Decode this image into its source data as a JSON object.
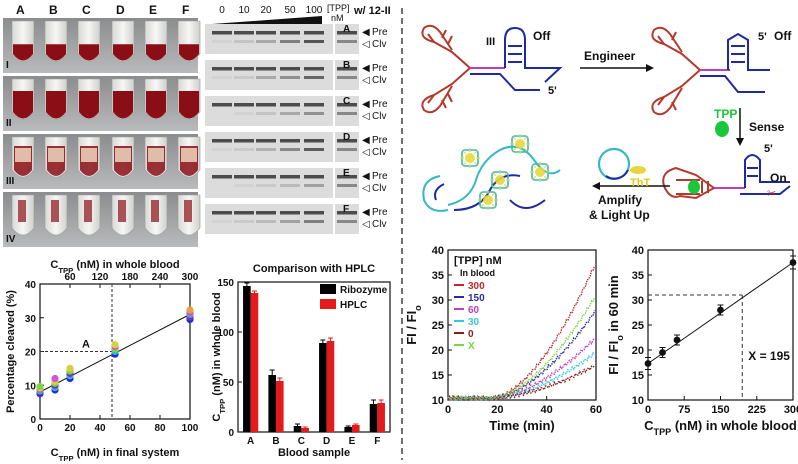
{
  "tube_panel": {
    "columns": [
      "A",
      "B",
      "C",
      "D",
      "E",
      "F"
    ],
    "rows": [
      "I",
      "II",
      "III",
      "IV"
    ]
  },
  "gel_panel": {
    "concentrations": [
      "0",
      "10",
      "20",
      "50",
      "100"
    ],
    "conc_label": "[TPP]",
    "conc_unit": "nM",
    "extra_header": "w/ 12-II",
    "lanes": [
      "A",
      "B",
      "C",
      "D",
      "E",
      "F"
    ],
    "band_labels": [
      "Pre",
      "Clv"
    ]
  },
  "scheme": {
    "off_label": "Off",
    "off_label_2": "Off",
    "five_prime": "5'",
    "five_prime_2": "5'",
    "five_prime_3": "5'",
    "stem_label": "III",
    "engineer": "Engineer",
    "tpp": "TPP",
    "sense": "Sense",
    "on_label": "On",
    "tht": "ThT",
    "amplify": "Amplify",
    "light_up": "& Light Up"
  },
  "colors": {
    "blood_red": "#8b0d16",
    "ribozyme": "#000000",
    "hplc": "#e41a1c",
    "rna_red": "#b5382d",
    "rna_magenta": "#c03fc0",
    "rna_blue": "#1f2a9e",
    "cyan": "#35b8c8",
    "tpp_green": "#18c83a",
    "tht_yellow": "#e6d83a"
  },
  "chart_data": [
    {
      "type": "scatter",
      "xlabel_top": "C_TPP (nM) in whole blood",
      "xlabel_bottom": "C_TPP (nM) in final system",
      "ylabel": "Percentage cleaved (%)",
      "xlim": [
        0,
        100
      ],
      "ylim": [
        0,
        40
      ],
      "top_xlim": [
        0,
        300
      ],
      "x_ticks": [
        0,
        20,
        40,
        60,
        80,
        100
      ],
      "y_ticks": [
        0,
        10,
        20,
        30,
        40
      ],
      "top_ticks": [
        60,
        120,
        180,
        240,
        300
      ],
      "annotation": "A",
      "annotation_point": [
        48,
        20
      ],
      "points": [
        {
          "x": 0,
          "y": 7.5,
          "color": "#1f2ad0"
        },
        {
          "x": 0,
          "y": 8.0,
          "color": "#7b2ed0"
        },
        {
          "x": 0,
          "y": 8.4,
          "color": "#35b8c8"
        },
        {
          "x": 0,
          "y": 8.8,
          "color": "#d64fd4"
        },
        {
          "x": 0,
          "y": 9.2,
          "color": "#d6d040"
        },
        {
          "x": 0,
          "y": 9.6,
          "color": "#7cd640"
        },
        {
          "x": 10,
          "y": 8.6,
          "color": "#1f2ad0"
        },
        {
          "x": 10,
          "y": 9.3,
          "color": "#35b8c8"
        },
        {
          "x": 10,
          "y": 10.0,
          "color": "#7b2ed0"
        },
        {
          "x": 10,
          "y": 10.6,
          "color": "#7cd640"
        },
        {
          "x": 10,
          "y": 11.2,
          "color": "#d6d040"
        },
        {
          "x": 10,
          "y": 12.0,
          "color": "#d64fd4"
        },
        {
          "x": 20,
          "y": 12.0,
          "color": "#1f2ad0"
        },
        {
          "x": 20,
          "y": 12.8,
          "color": "#35b8c8"
        },
        {
          "x": 20,
          "y": 13.5,
          "color": "#7b2ed0"
        },
        {
          "x": 20,
          "y": 14.2,
          "color": "#7cd640"
        },
        {
          "x": 20,
          "y": 15.0,
          "color": "#d6d040"
        },
        {
          "x": 50,
          "y": 19.2,
          "color": "#1f2ad0"
        },
        {
          "x": 50,
          "y": 20.0,
          "color": "#35b8c8"
        },
        {
          "x": 50,
          "y": 20.8,
          "color": "#7cd640"
        },
        {
          "x": 50,
          "y": 21.5,
          "color": "#d64fd4"
        },
        {
          "x": 50,
          "y": 22.0,
          "color": "#d6d040"
        },
        {
          "x": 100,
          "y": 29.5,
          "color": "#1f2ad0"
        },
        {
          "x": 100,
          "y": 30.2,
          "color": "#7b2ed0"
        },
        {
          "x": 100,
          "y": 31.0,
          "color": "#35b8c8"
        },
        {
          "x": 100,
          "y": 31.6,
          "color": "#d64fd4"
        },
        {
          "x": 100,
          "y": 32.3,
          "color": "#e8a040"
        }
      ],
      "fit_line": {
        "x": [
          0,
          100
        ],
        "y": [
          8,
          31
        ]
      }
    },
    {
      "type": "bar",
      "title": "Comparison with HPLC",
      "ylabel": "C_TPP (nM) in whole blood",
      "xlabel": "Blood sample",
      "categories": [
        "A",
        "B",
        "C",
        "D",
        "E",
        "F"
      ],
      "ylim": [
        0,
        150
      ],
      "y_ticks": [
        0,
        50,
        100,
        150
      ],
      "legend": "top-right",
      "series": [
        {
          "name": "Ribozyme",
          "color": "#000000",
          "values": [
            146,
            57,
            6,
            89,
            5,
            28
          ],
          "errors": [
            3,
            5,
            2,
            3,
            1,
            4
          ]
        },
        {
          "name": "HPLC",
          "color": "#e41a1c",
          "values": [
            139,
            51,
            4,
            91,
            7,
            29
          ],
          "errors": [
            2,
            3,
            1,
            3,
            1,
            3
          ]
        }
      ]
    },
    {
      "type": "line",
      "ylabel": "FI / FI_o",
      "xlabel": "Time (min)",
      "xlim": [
        0,
        60
      ],
      "ylim": [
        10,
        40
      ],
      "x_ticks": [
        0,
        20,
        40,
        60
      ],
      "y_ticks": [
        10,
        15,
        20,
        25,
        30,
        35,
        40
      ],
      "legend_title": "[TPP] nM",
      "legend_subtitle": "In blood",
      "legend": "top-left",
      "series": [
        {
          "name": "300",
          "color": "#c0282b",
          "end": 37.5
        },
        {
          "name": "150",
          "color": "#2b2f9e",
          "end": 28
        },
        {
          "name": "60",
          "color": "#c03fc0",
          "end": 22.5
        },
        {
          "name": "30",
          "color": "#35c8d8",
          "end": 19.5
        },
        {
          "name": "0",
          "color": "#8b1a1a",
          "end": 17
        },
        {
          "name": "X",
          "color": "#7cd640",
          "end": 31
        }
      ],
      "onset_x": 18
    },
    {
      "type": "line",
      "ylabel": "FI / FI_o in 60 min",
      "xlabel": "C_TPP (nM) in whole blood",
      "xlim": [
        0,
        300
      ],
      "ylim": [
        10,
        40
      ],
      "x_ticks": [
        0,
        75,
        150,
        225,
        300
      ],
      "y_ticks": [
        10,
        15,
        20,
        25,
        30,
        35,
        40
      ],
      "x": [
        0,
        30,
        60,
        150,
        300
      ],
      "values": [
        17.3,
        19.5,
        22,
        28,
        37.5
      ],
      "errors": [
        1.2,
        1,
        1,
        1,
        1.3
      ],
      "fit_line": {
        "x": [
          0,
          300
        ],
        "y": [
          17.3,
          37.5
        ]
      },
      "annotation": "X = 195",
      "annotation_point": [
        195,
        31
      ]
    }
  ]
}
